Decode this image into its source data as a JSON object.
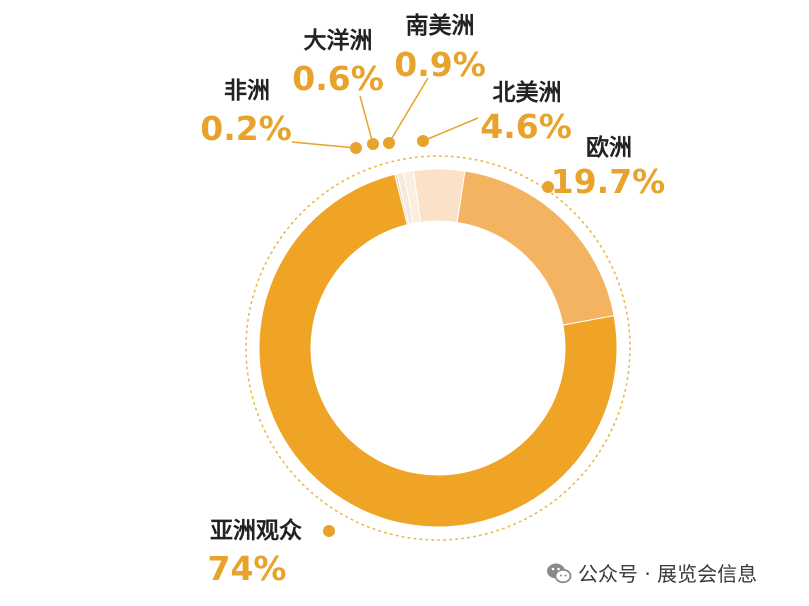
{
  "chart_data": {
    "type": "pie",
    "donut": true,
    "start_angle_deg": -14,
    "slices": [
      {
        "name": "非洲",
        "value": 0.2,
        "value_label": "0.2%",
        "color": "#d9d0c6"
      },
      {
        "name": "大洋洲",
        "value": 0.6,
        "value_label": "0.6%",
        "color": "#f7ead7"
      },
      {
        "name": "南美洲",
        "value": 0.9,
        "value_label": "0.9%",
        "color": "#fbeede"
      },
      {
        "name": "北美洲",
        "value": 4.6,
        "value_label": "4.6%",
        "color": "#fbe1c8"
      },
      {
        "name": "欧洲",
        "value": 19.7,
        "value_label": "19.7%",
        "color": "#f3b361"
      },
      {
        "name": "亚洲观众",
        "value": 74,
        "value_label": "74%",
        "color": "#efa426"
      }
    ],
    "label_color": "#e7a32b",
    "marker_color": "#e7a32b"
  },
  "watermark": {
    "text": "公众号 · 展览会信息",
    "icon": "wechat-icon"
  }
}
